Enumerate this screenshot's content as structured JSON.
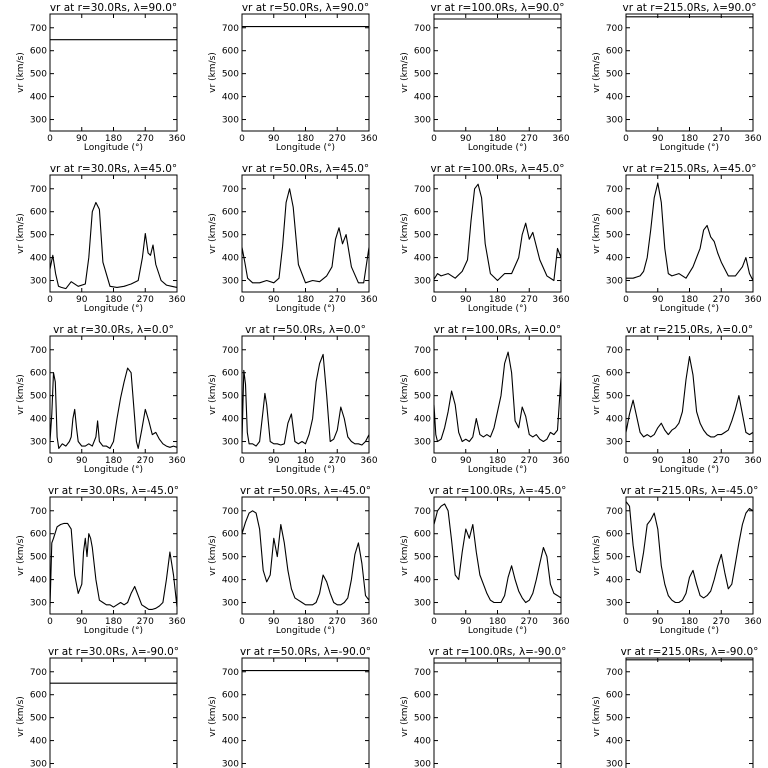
{
  "chart_data": {
    "type": "line",
    "xlabel": "Longitude (°)",
    "ylabel": "vr (km/s)",
    "xticks": [
      0,
      90,
      180,
      270,
      360
    ],
    "yticks": [
      300,
      400,
      500,
      600,
      700
    ],
    "xlim": [
      0,
      360
    ],
    "ylim": [
      250,
      760
    ],
    "panels": [
      {
        "title": "vr at r=30.0Rs, λ=90.0°",
        "x": [
          0,
          360
        ],
        "y": [
          648,
          648
        ]
      },
      {
        "title": "vr at r=50.0Rs, λ=90.0°",
        "x": [
          0,
          360
        ],
        "y": [
          705,
          705
        ]
      },
      {
        "title": "vr at r=100.0Rs, λ=90.0°",
        "x": [
          0,
          360
        ],
        "y": [
          738,
          738
        ]
      },
      {
        "title": "vr at r=215.0Rs, λ=90.0°",
        "x": [
          0,
          360
        ],
        "y": [
          748,
          748
        ]
      },
      {
        "title": "vr at r=30.0Rs, λ=45.0°",
        "x": [
          0,
          8,
          16,
          24,
          32,
          45,
          60,
          80,
          100,
          110,
          120,
          130,
          140,
          150,
          170,
          190,
          210,
          230,
          250,
          262,
          270,
          278,
          285,
          292,
          300,
          315,
          330,
          345,
          360
        ],
        "y": [
          350,
          410,
          330,
          275,
          270,
          265,
          295,
          275,
          285,
          400,
          600,
          640,
          610,
          380,
          275,
          270,
          275,
          285,
          300,
          400,
          505,
          420,
          410,
          455,
          370,
          300,
          280,
          275,
          270
        ]
      },
      {
        "title": "vr at r=50.0Rs, λ=45.0°",
        "x": [
          0,
          8,
          16,
          30,
          50,
          70,
          90,
          105,
          115,
          125,
          135,
          145,
          160,
          180,
          200,
          220,
          240,
          255,
          265,
          275,
          285,
          295,
          310,
          330,
          345,
          360
        ],
        "y": [
          445,
          380,
          310,
          290,
          290,
          300,
          290,
          310,
          450,
          640,
          700,
          620,
          370,
          290,
          300,
          295,
          320,
          360,
          480,
          530,
          460,
          500,
          360,
          290,
          290,
          445
        ]
      },
      {
        "title": "vr at r=100.0Rs, λ=45.0°",
        "x": [
          0,
          10,
          20,
          40,
          60,
          80,
          95,
          105,
          115,
          125,
          135,
          145,
          160,
          180,
          200,
          220,
          240,
          250,
          260,
          270,
          280,
          300,
          320,
          340,
          350,
          360
        ],
        "y": [
          305,
          330,
          320,
          330,
          310,
          340,
          390,
          560,
          700,
          720,
          660,
          460,
          330,
          300,
          330,
          330,
          400,
          500,
          550,
          480,
          510,
          390,
          320,
          300,
          440,
          400
        ]
      },
      {
        "title": "vr at r=215.0Rs, λ=45.0°",
        "x": [
          0,
          20,
          40,
          50,
          60,
          70,
          80,
          90,
          100,
          110,
          120,
          130,
          150,
          170,
          190,
          210,
          220,
          230,
          240,
          250,
          260,
          270,
          290,
          310,
          330,
          340,
          350,
          360
        ],
        "y": [
          310,
          310,
          320,
          340,
          400,
          520,
          660,
          725,
          640,
          440,
          330,
          320,
          330,
          310,
          360,
          440,
          520,
          540,
          490,
          470,
          420,
          380,
          320,
          320,
          360,
          400,
          330,
          300
        ]
      },
      {
        "title": "vr at r=30.0Rs, λ=0.0°",
        "x": [
          0,
          5,
          10,
          15,
          20,
          25,
          35,
          45,
          55,
          60,
          65,
          70,
          75,
          80,
          90,
          100,
          110,
          120,
          130,
          135,
          140,
          150,
          160,
          170,
          180,
          190,
          200,
          210,
          220,
          230,
          240,
          245,
          250,
          260,
          270,
          280,
          290,
          300,
          310,
          320,
          330,
          340,
          350,
          360
        ],
        "y": [
          300,
          420,
          600,
          560,
          320,
          270,
          290,
          280,
          300,
          320,
          400,
          440,
          360,
          300,
          280,
          280,
          290,
          280,
          320,
          390,
          300,
          280,
          280,
          270,
          300,
          400,
          490,
          560,
          620,
          600,
          400,
          300,
          270,
          350,
          440,
          390,
          330,
          340,
          310,
          290,
          280,
          275,
          280,
          275
        ]
      },
      {
        "title": "vr at r=50.0Rs, λ=0.0°",
        "x": [
          0,
          5,
          10,
          15,
          20,
          30,
          40,
          50,
          60,
          65,
          70,
          80,
          90,
          100,
          110,
          120,
          130,
          140,
          150,
          160,
          170,
          180,
          190,
          200,
          210,
          220,
          230,
          240,
          250,
          260,
          270,
          280,
          290,
          300,
          310,
          320,
          330,
          340,
          350,
          360
        ],
        "y": [
          300,
          610,
          550,
          340,
          290,
          290,
          280,
          300,
          440,
          510,
          460,
          300,
          290,
          290,
          285,
          290,
          380,
          420,
          300,
          290,
          300,
          290,
          330,
          400,
          560,
          640,
          680,
          500,
          300,
          310,
          350,
          450,
          400,
          320,
          300,
          290,
          290,
          285,
          300,
          330
        ]
      },
      {
        "title": "vr at r=100.0Rs, λ=0.0°",
        "x": [
          0,
          5,
          10,
          20,
          30,
          40,
          50,
          60,
          70,
          80,
          90,
          100,
          110,
          120,
          130,
          140,
          150,
          160,
          170,
          180,
          190,
          200,
          210,
          220,
          230,
          240,
          250,
          260,
          270,
          280,
          290,
          300,
          310,
          320,
          330,
          340,
          350,
          360
        ],
        "y": [
          460,
          330,
          300,
          310,
          360,
          430,
          520,
          460,
          340,
          300,
          310,
          300,
          320,
          400,
          330,
          320,
          330,
          320,
          360,
          430,
          500,
          640,
          690,
          600,
          390,
          360,
          450,
          410,
          330,
          320,
          330,
          310,
          300,
          310,
          340,
          330,
          350,
          580
        ]
      },
      {
        "title": "vr at r=215.0Rs, λ=0.0°",
        "x": [
          0,
          10,
          20,
          30,
          40,
          50,
          60,
          70,
          80,
          90,
          100,
          110,
          120,
          130,
          140,
          150,
          160,
          170,
          180,
          190,
          200,
          210,
          220,
          230,
          240,
          250,
          260,
          270,
          280,
          290,
          300,
          310,
          320,
          330,
          340,
          350,
          360
        ],
        "y": [
          340,
          420,
          480,
          410,
          340,
          320,
          330,
          320,
          330,
          360,
          380,
          350,
          330,
          350,
          360,
          380,
          430,
          570,
          670,
          590,
          430,
          380,
          350,
          330,
          320,
          320,
          330,
          330,
          340,
          350,
          390,
          440,
          500,
          420,
          340,
          330,
          340
        ]
      },
      {
        "title": "vr at r=30.0Rs, λ=-45.0°",
        "x": [
          0,
          5,
          10,
          20,
          30,
          40,
          50,
          60,
          70,
          80,
          90,
          95,
          100,
          105,
          110,
          115,
          120,
          130,
          140,
          150,
          160,
          170,
          180,
          190,
          200,
          210,
          220,
          230,
          240,
          250,
          260,
          270,
          280,
          290,
          300,
          310,
          320,
          330,
          340,
          350,
          360
        ],
        "y": [
          280,
          560,
          580,
          630,
          640,
          645,
          645,
          620,
          420,
          340,
          380,
          520,
          580,
          500,
          600,
          580,
          540,
          400,
          310,
          300,
          290,
          290,
          280,
          290,
          300,
          290,
          300,
          340,
          370,
          330,
          290,
          280,
          270,
          270,
          275,
          285,
          300,
          400,
          520,
          420,
          280
        ]
      },
      {
        "title": "vr at r=50.0Rs, λ=-45.0°",
        "x": [
          0,
          10,
          20,
          30,
          40,
          50,
          60,
          70,
          80,
          90,
          100,
          110,
          120,
          130,
          140,
          150,
          160,
          170,
          180,
          190,
          200,
          210,
          220,
          230,
          240,
          250,
          260,
          270,
          280,
          290,
          300,
          310,
          320,
          330,
          340,
          350,
          360
        ],
        "y": [
          600,
          650,
          690,
          700,
          690,
          620,
          440,
          390,
          420,
          580,
          500,
          640,
          560,
          440,
          360,
          320,
          310,
          300,
          290,
          290,
          290,
          300,
          340,
          420,
          390,
          340,
          300,
          290,
          290,
          300,
          320,
          400,
          510,
          560,
          470,
          330,
          310
        ]
      },
      {
        "title": "vr at r=100.0Rs, λ=-45.0°",
        "x": [
          0,
          10,
          20,
          30,
          40,
          50,
          60,
          70,
          80,
          90,
          100,
          110,
          120,
          130,
          140,
          150,
          160,
          170,
          180,
          190,
          200,
          210,
          220,
          230,
          240,
          250,
          260,
          270,
          280,
          290,
          300,
          310,
          320,
          330,
          340,
          350,
          360
        ],
        "y": [
          640,
          700,
          720,
          730,
          700,
          570,
          420,
          400,
          520,
          620,
          580,
          640,
          520,
          420,
          380,
          340,
          310,
          300,
          300,
          300,
          330,
          410,
          460,
          400,
          350,
          320,
          300,
          310,
          340,
          400,
          470,
          540,
          500,
          380,
          340,
          330,
          320
        ]
      },
      {
        "title": "vr at r=215.0Rs, λ=-45.0°",
        "x": [
          0,
          10,
          20,
          30,
          40,
          50,
          60,
          70,
          80,
          90,
          100,
          110,
          120,
          130,
          140,
          150,
          160,
          170,
          180,
          190,
          200,
          210,
          220,
          230,
          240,
          250,
          260,
          270,
          280,
          290,
          300,
          310,
          320,
          330,
          340,
          350,
          360
        ],
        "y": [
          740,
          720,
          550,
          440,
          430,
          520,
          640,
          660,
          690,
          620,
          460,
          380,
          330,
          310,
          300,
          300,
          310,
          340,
          410,
          440,
          380,
          330,
          320,
          330,
          350,
          400,
          460,
          510,
          430,
          360,
          380,
          470,
          560,
          640,
          690,
          710,
          700
        ]
      },
      {
        "title": "vr at r=30.0Rs, λ=-90.0°",
        "x": [
          0,
          360
        ],
        "y": [
          650,
          650
        ]
      },
      {
        "title": "vr at r=50.0Rs, λ=-90.0°",
        "x": [
          0,
          360
        ],
        "y": [
          705,
          705
        ]
      },
      {
        "title": "vr at r=100.0Rs, λ=-90.0°",
        "x": [
          0,
          360
        ],
        "y": [
          738,
          738
        ]
      },
      {
        "title": "vr at r=215.0Rs, λ=-90.0°",
        "x": [
          0,
          360
        ],
        "y": [
          752,
          752
        ]
      }
    ]
  }
}
